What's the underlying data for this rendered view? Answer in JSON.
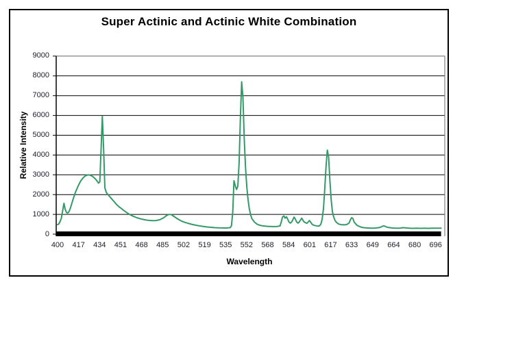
{
  "chart_data": {
    "type": "line",
    "title": "Super Actinic and Actinic White Combination",
    "xlabel": "Wavelength",
    "ylabel": "Relative Intensity",
    "x_tick_labels": [
      "400",
      "417",
      "434",
      "451",
      "468",
      "485",
      "502",
      "519",
      "535",
      "552",
      "568",
      "584",
      "601",
      "617",
      "633",
      "649",
      "664",
      "680",
      "696"
    ],
    "y_ticks": [
      0,
      1000,
      2000,
      3000,
      4000,
      5000,
      6000,
      7000,
      8000,
      9000
    ],
    "xlim": [
      400,
      700
    ],
    "ylim": [
      0,
      9000
    ],
    "grid": "horizontal-black",
    "legend": "none",
    "colors": {
      "line": "#339966",
      "gridline": "#000000",
      "plot_border": "#808080",
      "axis_bar": "#000000",
      "tick_text": "#1c1c28"
    },
    "series": [
      {
        "points": [
          [
            400,
            480
          ],
          [
            401,
            520
          ],
          [
            402,
            640
          ],
          [
            403,
            820
          ],
          [
            404,
            1200
          ],
          [
            405,
            1560
          ],
          [
            406,
            1250
          ],
          [
            407,
            1090
          ],
          [
            408,
            1070
          ],
          [
            409,
            1150
          ],
          [
            410,
            1320
          ],
          [
            411,
            1520
          ],
          [
            412,
            1740
          ],
          [
            414,
            2120
          ],
          [
            416,
            2420
          ],
          [
            418,
            2680
          ],
          [
            420,
            2850
          ],
          [
            422,
            2960
          ],
          [
            424,
            3000
          ],
          [
            426,
            2970
          ],
          [
            428,
            2890
          ],
          [
            430,
            2760
          ],
          [
            431,
            2680
          ],
          [
            432,
            2580
          ],
          [
            433,
            2640
          ],
          [
            434,
            4200
          ],
          [
            435,
            5950
          ],
          [
            436,
            4300
          ],
          [
            437,
            2350
          ],
          [
            438,
            2120
          ],
          [
            439,
            2030
          ],
          [
            440,
            1960
          ],
          [
            442,
            1810
          ],
          [
            444,
            1660
          ],
          [
            446,
            1510
          ],
          [
            448,
            1390
          ],
          [
            450,
            1290
          ],
          [
            453,
            1140
          ],
          [
            456,
            1010
          ],
          [
            459,
            910
          ],
          [
            462,
            830
          ],
          [
            465,
            775
          ],
          [
            468,
            730
          ],
          [
            471,
            700
          ],
          [
            474,
            685
          ],
          [
            477,
            690
          ],
          [
            480,
            730
          ],
          [
            483,
            830
          ],
          [
            485,
            930
          ],
          [
            487,
            1000
          ],
          [
            489,
            990
          ],
          [
            491,
            900
          ],
          [
            493,
            810
          ],
          [
            495,
            730
          ],
          [
            497,
            660
          ],
          [
            499,
            610
          ],
          [
            502,
            550
          ],
          [
            505,
            500
          ],
          [
            508,
            455
          ],
          [
            511,
            420
          ],
          [
            514,
            390
          ],
          [
            517,
            365
          ],
          [
            520,
            345
          ],
          [
            523,
            330
          ],
          [
            526,
            320
          ],
          [
            529,
            315
          ],
          [
            532,
            310
          ],
          [
            535,
            330
          ],
          [
            536,
            420
          ],
          [
            537,
            1100
          ],
          [
            538,
            2700
          ],
          [
            539,
            2450
          ],
          [
            540,
            2260
          ],
          [
            541,
            2420
          ],
          [
            542,
            3600
          ],
          [
            543,
            5800
          ],
          [
            544,
            7700
          ],
          [
            545,
            6900
          ],
          [
            546,
            4900
          ],
          [
            547,
            3400
          ],
          [
            548,
            2400
          ],
          [
            549,
            1750
          ],
          [
            550,
            1280
          ],
          [
            551,
            980
          ],
          [
            552,
            790
          ],
          [
            554,
            610
          ],
          [
            556,
            510
          ],
          [
            558,
            455
          ],
          [
            560,
            425
          ],
          [
            563,
            400
          ],
          [
            566,
            390
          ],
          [
            569,
            385
          ],
          [
            572,
            390
          ],
          [
            574,
            420
          ],
          [
            575,
            620
          ],
          [
            576,
            870
          ],
          [
            577,
            920
          ],
          [
            578,
            810
          ],
          [
            579,
            880
          ],
          [
            580,
            760
          ],
          [
            581,
            620
          ],
          [
            582,
            560
          ],
          [
            583,
            610
          ],
          [
            584,
            720
          ],
          [
            585,
            860
          ],
          [
            586,
            760
          ],
          [
            587,
            620
          ],
          [
            588,
            560
          ],
          [
            589,
            610
          ],
          [
            590,
            710
          ],
          [
            591,
            810
          ],
          [
            592,
            700
          ],
          [
            593,
            610
          ],
          [
            595,
            550
          ],
          [
            596,
            610
          ],
          [
            597,
            690
          ],
          [
            598,
            610
          ],
          [
            599,
            510
          ],
          [
            600,
            460
          ],
          [
            602,
            425
          ],
          [
            604,
            405
          ],
          [
            605,
            425
          ],
          [
            606,
            520
          ],
          [
            607,
            760
          ],
          [
            608,
            1300
          ],
          [
            609,
            2300
          ],
          [
            610,
            3400
          ],
          [
            611,
            4250
          ],
          [
            612,
            3900
          ],
          [
            613,
            2750
          ],
          [
            614,
            1750
          ],
          [
            615,
            1150
          ],
          [
            616,
            870
          ],
          [
            617,
            700
          ],
          [
            618,
            610
          ],
          [
            619,
            555
          ],
          [
            620,
            510
          ],
          [
            622,
            480
          ],
          [
            624,
            470
          ],
          [
            626,
            485
          ],
          [
            628,
            560
          ],
          [
            629,
            720
          ],
          [
            630,
            830
          ],
          [
            631,
            800
          ],
          [
            632,
            610
          ],
          [
            634,
            460
          ],
          [
            636,
            390
          ],
          [
            638,
            345
          ],
          [
            640,
            325
          ],
          [
            643,
            310
          ],
          [
            646,
            300
          ],
          [
            649,
            310
          ],
          [
            652,
            335
          ],
          [
            654,
            395
          ],
          [
            655,
            420
          ],
          [
            656,
            405
          ],
          [
            657,
            370
          ],
          [
            659,
            335
          ],
          [
            662,
            310
          ],
          [
            665,
            300
          ],
          [
            668,
            305
          ],
          [
            670,
            330
          ],
          [
            672,
            320
          ],
          [
            675,
            305
          ],
          [
            678,
            295
          ],
          [
            681,
            300
          ],
          [
            684,
            295
          ],
          [
            687,
            300
          ],
          [
            690,
            295
          ],
          [
            693,
            300
          ],
          [
            696,
            305
          ],
          [
            698,
            300
          ],
          [
            700,
            300
          ]
        ]
      }
    ]
  }
}
